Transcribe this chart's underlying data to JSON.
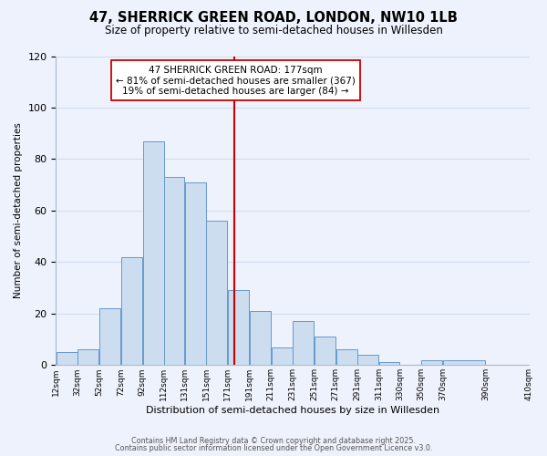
{
  "title": "47, SHERRICK GREEN ROAD, LONDON, NW10 1LB",
  "subtitle": "Size of property relative to semi-detached houses in Willesden",
  "xlabel": "Distribution of semi-detached houses by size in Willesden",
  "ylabel": "Number of semi-detached properties",
  "bar_heights": [
    5,
    6,
    22,
    42,
    87,
    73,
    71,
    56,
    29,
    21,
    7,
    17,
    11,
    6,
    4,
    1,
    0,
    2,
    2
  ],
  "bin_edges": [
    12,
    32,
    52,
    72,
    92,
    112,
    131,
    151,
    171,
    191,
    211,
    231,
    251,
    271,
    291,
    311,
    330,
    350,
    370,
    410
  ],
  "tick_labels": [
    "12sqm",
    "32sqm",
    "52sqm",
    "72sqm",
    "92sqm",
    "112sqm",
    "131sqm",
    "151sqm",
    "171sqm",
    "191sqm",
    "211sqm",
    "231sqm",
    "251sqm",
    "271sqm",
    "291sqm",
    "311sqm",
    "330sqm",
    "350sqm",
    "370sqm",
    "390sqm",
    "410sqm"
  ],
  "bar_color": "#ccddf0",
  "bar_edge_color": "#6699cc",
  "vline_x": 177,
  "vline_color": "#cc0000",
  "annotation_title": "47 SHERRICK GREEN ROAD: 177sqm",
  "annotation_line1": "← 81% of semi-detached houses are smaller (367)",
  "annotation_line2": "19% of semi-detached houses are larger (84) →",
  "annotation_box_color": "#ffffff",
  "annotation_box_edge": "#cc0000",
  "ylim": [
    0,
    120
  ],
  "yticks": [
    0,
    20,
    40,
    60,
    80,
    100,
    120
  ],
  "grid_color": "#d0ddf0",
  "background_color": "#eef2fc",
  "footnote1": "Contains HM Land Registry data © Crown copyright and database right 2025.",
  "footnote2": "Contains public sector information licensed under the Open Government Licence v3.0."
}
